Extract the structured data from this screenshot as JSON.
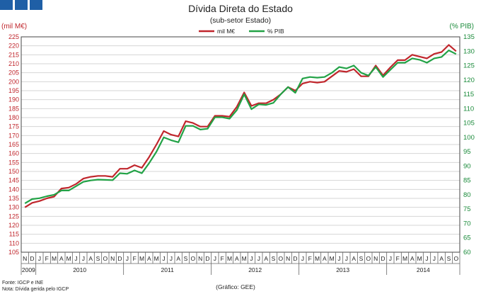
{
  "header": {
    "title": "Dívida Direta do Estado",
    "subtitle": "(sub-setor Estado)"
  },
  "footer": {
    "source": "Fonte: IGCP e INE",
    "note": "Nota: Dívida gerida pelo IGCP",
    "credit": "(Gráfico: GEE)"
  },
  "colors": {
    "debt": "#c0262c",
    "pct": "#22a246",
    "logo": "#1f5fa6"
  },
  "chart_data": {
    "type": "line",
    "title": "Dívida Direta do Estado",
    "subtitle": "(sub-setor Estado)",
    "y_left": {
      "label": "(mil M€)",
      "ylim": [
        105,
        225
      ],
      "ticks": [
        105,
        110,
        115,
        120,
        125,
        130,
        135,
        140,
        145,
        150,
        155,
        160,
        165,
        170,
        175,
        180,
        185,
        190,
        195,
        200,
        205,
        210,
        215,
        220,
        225
      ]
    },
    "y_right": {
      "label": "(% PIB)",
      "ylim": [
        60,
        135
      ],
      "ticks": [
        60,
        65,
        70,
        75,
        80,
        85,
        90,
        95,
        100,
        105,
        110,
        115,
        120,
        125,
        130,
        135
      ]
    },
    "month_labels": [
      "N",
      "D",
      "J",
      "F",
      "M",
      "A",
      "M",
      "J",
      "J",
      "A",
      "S",
      "O",
      "N",
      "D",
      "J",
      "F",
      "M",
      "A",
      "M",
      "J",
      "J",
      "A",
      "S",
      "O",
      "N",
      "D",
      "J",
      "F",
      "M",
      "A",
      "M",
      "J",
      "J",
      "A",
      "S",
      "O",
      "N",
      "D",
      "J",
      "F",
      "M",
      "A",
      "M",
      "J",
      "J",
      "A",
      "S",
      "O",
      "N",
      "D",
      "J",
      "F",
      "M",
      "A",
      "M",
      "J",
      "J",
      "A",
      "S",
      "O"
    ],
    "year_labels": [
      {
        "label": "2009",
        "start": 0,
        "end": 2
      },
      {
        "label": "2010",
        "start": 2,
        "end": 14
      },
      {
        "label": "2011",
        "start": 14,
        "end": 26
      },
      {
        "label": "2012",
        "start": 26,
        "end": 38
      },
      {
        "label": "2013",
        "start": 38,
        "end": 50
      },
      {
        "label": "2014",
        "start": 50,
        "end": 60
      }
    ],
    "grid": true,
    "legend": "top-center",
    "series": [
      {
        "name": "mil M€",
        "axis": "left",
        "color": "#c0262c",
        "values": [
          130,
          132.5,
          133.5,
          135,
          136,
          140.5,
          141,
          143,
          146,
          147,
          147.5,
          147.5,
          147,
          151.5,
          151.5,
          153.5,
          152,
          158,
          165,
          172.5,
          170.5,
          169.5,
          178,
          177,
          175,
          175,
          181,
          181,
          180.5,
          186,
          194,
          186.5,
          188,
          188,
          190,
          193,
          197,
          195,
          199,
          200,
          199.5,
          200,
          203,
          206,
          205.5,
          207,
          203,
          203,
          209,
          203.5,
          208,
          212,
          212,
          215,
          214,
          213,
          215.5,
          216.5,
          220.5,
          217
        ]
      },
      {
        "name": "% PIB",
        "axis": "right",
        "color": "#22a246",
        "values": [
          77,
          78.5,
          78.8,
          79.5,
          80,
          81.5,
          81.5,
          83,
          84.5,
          85,
          85.3,
          85.2,
          85.1,
          87.5,
          87.3,
          88.5,
          87.5,
          91,
          95,
          100,
          99,
          98.3,
          104,
          104,
          102.7,
          103,
          107,
          107,
          106.5,
          109.5,
          115,
          109.8,
          111.5,
          111.3,
          112,
          115,
          117.5,
          115.5,
          120.5,
          121,
          120.8,
          121,
          122.5,
          124.5,
          124,
          125,
          122.5,
          121.5,
          124.5,
          121,
          123.5,
          126,
          126,
          127.5,
          127,
          126,
          127.5,
          128,
          130.3,
          129
        ]
      }
    ]
  }
}
